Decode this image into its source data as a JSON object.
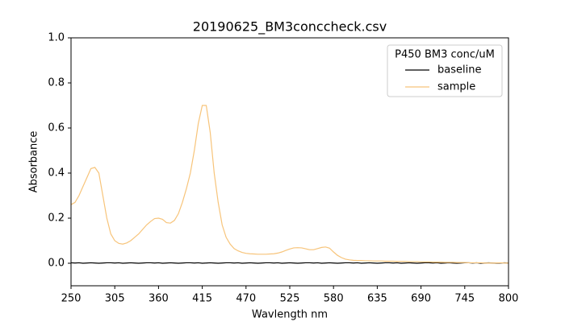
{
  "chart_data": {
    "type": "line",
    "title": "20190625_BM3conccheck.csv",
    "x_label": "Wavlength nm",
    "y_label": "Absorbance",
    "legend_title": "P450 BM3 conc/uM",
    "legend": "upper right",
    "grid": false,
    "xlim": [
      250,
      800
    ],
    "xticks": [
      250,
      305,
      360,
      415,
      470,
      525,
      580,
      635,
      690,
      745,
      800
    ],
    "ylim": [
      -0.1,
      1.0
    ],
    "yticks": [
      {
        "value": 0,
        "label": "0.0"
      },
      {
        "value": 0.2,
        "label": "0.2"
      },
      {
        "value": 0.4,
        "label": "0.4"
      },
      {
        "value": 0.6,
        "label": "0.6"
      },
      {
        "value": 0.8,
        "label": "0.8"
      },
      {
        "value": 1.0,
        "label": "1.0"
      }
    ],
    "x": [
      250,
      255,
      260,
      265,
      270,
      275,
      280,
      285,
      290,
      295,
      300,
      305,
      310,
      315,
      320,
      325,
      330,
      335,
      340,
      345,
      350,
      355,
      360,
      365,
      370,
      375,
      380,
      385,
      390,
      395,
      400,
      405,
      410,
      415,
      420,
      425,
      430,
      435,
      440,
      445,
      450,
      455,
      460,
      465,
      470,
      475,
      480,
      485,
      490,
      495,
      500,
      505,
      510,
      515,
      520,
      525,
      530,
      535,
      540,
      545,
      550,
      555,
      560,
      565,
      570,
      575,
      580,
      585,
      590,
      595,
      600,
      605,
      610,
      615,
      620,
      625,
      630,
      635,
      640,
      645,
      650,
      655,
      660,
      665,
      670,
      675,
      680,
      685,
      690,
      695,
      700,
      705,
      710,
      715,
      720,
      725,
      730,
      735,
      740,
      745,
      750,
      755,
      760,
      765,
      770,
      775,
      780,
      785,
      790,
      795,
      800
    ],
    "series": [
      {
        "name": "baseline",
        "color": "#000000",
        "values": [
          0.002,
          0.001,
          0.002,
          0,
          0.001,
          0.002,
          0.001,
          0,
          0.001,
          0.002,
          0.002,
          0.001,
          0.002,
          0,
          0.001,
          0.002,
          0.001,
          0,
          0.001,
          0.002,
          0.002,
          0.001,
          0.002,
          0,
          0.001,
          0.002,
          0.001,
          0,
          0.001,
          0.002,
          0.002,
          0.001,
          0.002,
          0,
          0.001,
          0.002,
          0.001,
          0,
          0.001,
          0.002,
          0.002,
          0.001,
          0.002,
          0,
          0.001,
          0.002,
          0.001,
          0,
          0.001,
          0.002,
          0.002,
          0.001,
          0.002,
          0,
          0.001,
          0.002,
          0.001,
          0,
          0.001,
          0.002,
          0.002,
          0.001,
          0.002,
          0,
          0.001,
          0.002,
          0.001,
          0,
          0.001,
          0.002,
          0.002,
          0.001,
          0.002,
          0,
          0.001,
          0.002,
          0.001,
          0,
          0.001,
          0.002,
          0.002,
          0.001,
          0.002,
          0,
          0.001,
          0.002,
          0.001,
          0,
          0.001,
          0.002,
          0.002,
          0.001,
          0.002,
          0,
          0.001,
          0.002,
          0.001,
          0,
          0.001,
          0.002,
          0.002,
          0.001,
          0.002,
          0,
          0.001,
          0.002,
          0.001,
          0,
          0.001,
          0.002,
          0.001
        ]
      },
      {
        "name": "sample",
        "color": "#f7c47a",
        "values": [
          0.26,
          0.27,
          0.3,
          0.34,
          0.38,
          0.42,
          0.425,
          0.4,
          0.3,
          0.2,
          0.13,
          0.1,
          0.088,
          0.085,
          0.09,
          0.1,
          0.115,
          0.13,
          0.15,
          0.17,
          0.185,
          0.198,
          0.2,
          0.195,
          0.18,
          0.178,
          0.19,
          0.22,
          0.27,
          0.33,
          0.4,
          0.5,
          0.62,
          0.7,
          0.7,
          0.58,
          0.4,
          0.27,
          0.17,
          0.115,
          0.085,
          0.065,
          0.055,
          0.048,
          0.044,
          0.042,
          0.041,
          0.04,
          0.04,
          0.04,
          0.041,
          0.042,
          0.045,
          0.05,
          0.057,
          0.063,
          0.068,
          0.069,
          0.068,
          0.064,
          0.06,
          0.06,
          0.065,
          0.07,
          0.072,
          0.067,
          0.05,
          0.035,
          0.025,
          0.018,
          0.015,
          0.013,
          0.012,
          0.012,
          0.011,
          0.011,
          0.01,
          0.01,
          0.01,
          0.009,
          0.009,
          0.009,
          0.008,
          0.008,
          0.008,
          0.007,
          0.007,
          0.007,
          0.006,
          0.006,
          0.006,
          0.005,
          0.005,
          0.005,
          0.004,
          0.004,
          0.004,
          0.003,
          0.003,
          0.003,
          0.002,
          0.002,
          0.002,
          0.002,
          0.001,
          0.001,
          0.001,
          0.001,
          0.002,
          0.001,
          0.001
        ]
      }
    ]
  }
}
